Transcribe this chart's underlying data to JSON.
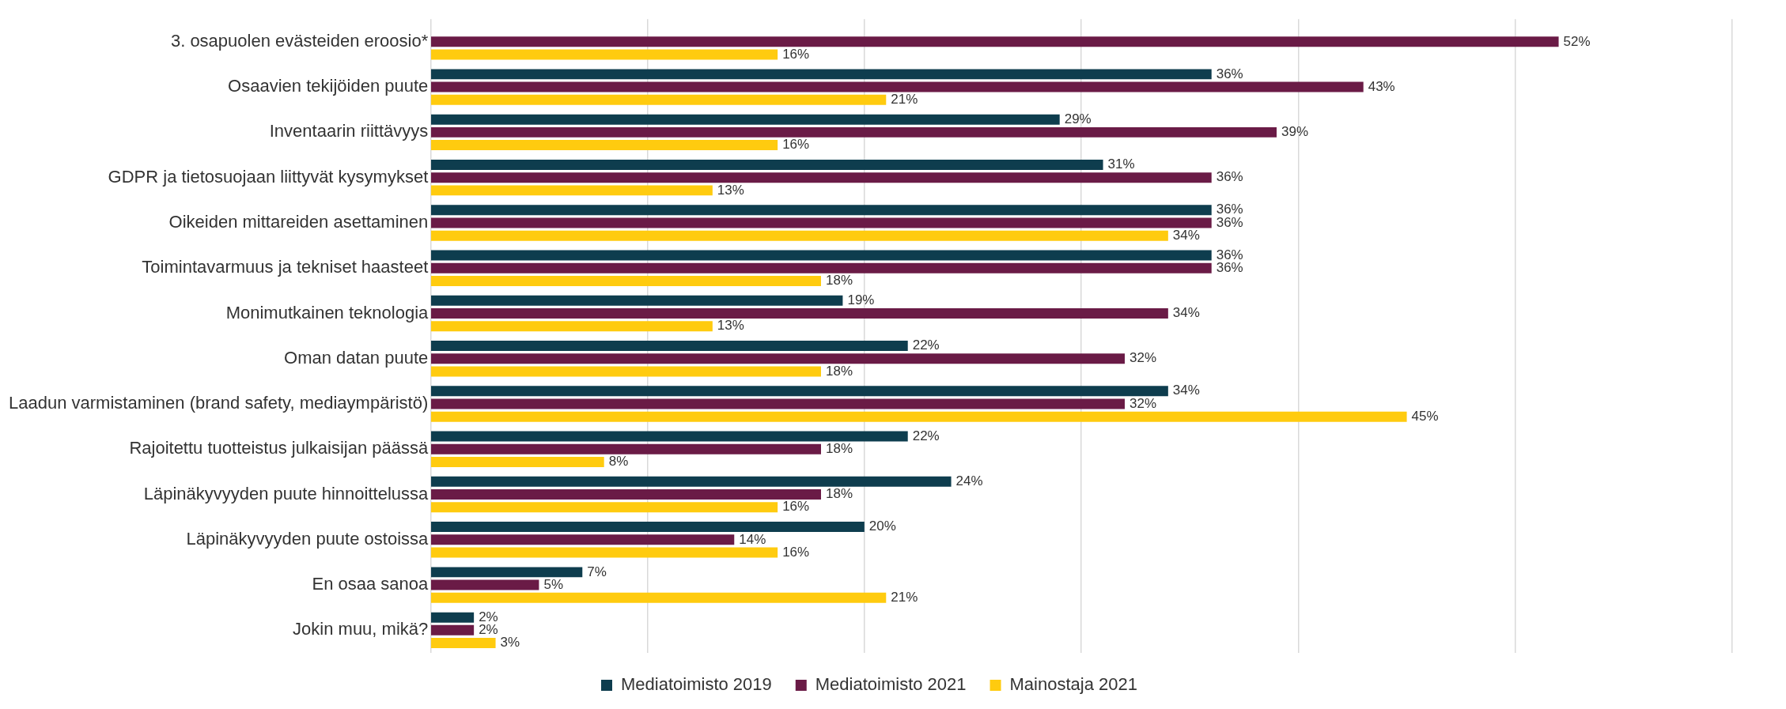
{
  "chart_data": {
    "type": "bar",
    "orientation": "horizontal",
    "categories": [
      "3. osapuolen evästeiden eroosio*",
      "Osaavien tekijöiden puute",
      "Inventaarin riittävyys",
      "GDPR ja tietosuojaan liittyvät kysymykset",
      "Oikeiden mittareiden asettaminen",
      "Toimintavarmuus ja tekniset haasteet",
      "Monimutkainen teknologia",
      "Oman datan puute",
      "Laadun varmistaminen (brand safety, mediaympäristö)",
      "Rajoitettu tuotteistus julkaisijan päässä",
      "Läpinäkyvyyden puute hinnoittelussa",
      "Läpinäkyvyyden puute ostoissa",
      "En osaa sanoa",
      "Jokin muu, mikä?"
    ],
    "series": [
      {
        "name": "Mediatoimisto 2019",
        "color": "#0e3d4e",
        "values": [
          null,
          36,
          29,
          31,
          36,
          36,
          19,
          22,
          34,
          22,
          24,
          20,
          7,
          2
        ],
        "value_labels": [
          null,
          "36%",
          "29%",
          "31%",
          "36%",
          "36%",
          "19%",
          "22%",
          "34%",
          "22%",
          "24%",
          "20%",
          "7%",
          "2%"
        ]
      },
      {
        "name": "Mediatoimisto 2021",
        "color": "#6a1b46",
        "values": [
          52,
          43,
          39,
          36,
          36,
          36,
          34,
          32,
          32,
          18,
          18,
          14,
          5,
          2
        ],
        "value_labels": [
          "52%",
          "43%",
          "39%",
          "36%",
          "36%",
          "36%",
          "34%",
          "32%",
          "32%",
          "18%",
          "18%",
          "14%",
          "5%",
          "2%"
        ]
      },
      {
        "name": "Mainostaja 2021",
        "color": "#ffcb0f",
        "values": [
          16,
          21,
          16,
          13,
          34,
          18,
          13,
          18,
          45,
          8,
          16,
          16,
          21,
          3
        ],
        "value_labels": [
          "16%",
          "21%",
          "16%",
          "13%",
          "34%",
          "18%",
          "13%",
          "18%",
          "45%",
          "8%",
          "16%",
          "16%",
          "21%",
          "3%"
        ]
      }
    ],
    "xlim": [
      0,
      60
    ],
    "xticks": [
      {
        "value": 0,
        "label": null
      },
      {
        "value": 10,
        "label": null
      },
      {
        "value": 20,
        "label": null
      },
      {
        "value": 30,
        "label": null
      },
      {
        "value": 40,
        "label": null
      },
      {
        "value": 50,
        "label": null
      },
      {
        "value": 60,
        "label": null
      }
    ],
    "grid": "x",
    "legend": "bottom",
    "tick_labels": "y"
  }
}
